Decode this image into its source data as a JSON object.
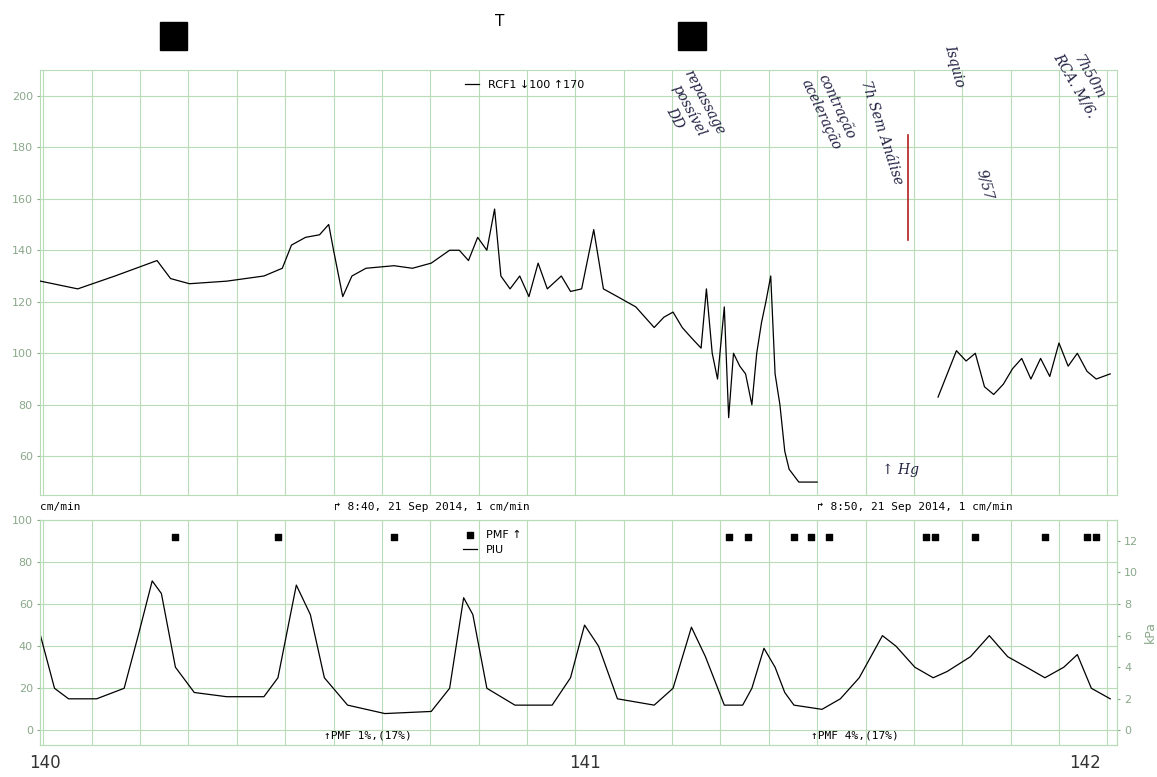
{
  "chart_data": [
    {
      "type": "line",
      "series": [
        {
          "name": "RCF1 ↓100 ↑170",
          "color": "#000000",
          "type": "line",
          "x": [
            -6.06,
            -5.29,
            -4.52,
            -3.65,
            -3.37,
            -2.98,
            -2.21,
            -1.44,
            -1.06,
            -0.87,
            -0.58,
            -0.29,
            -0.1,
            0,
            0.19,
            0.38,
            0.67,
            1.25,
            1.63,
            2.02,
            2.4,
            2.6,
            2.79,
            2.98,
            3.17,
            3.33,
            3.46,
            3.65,
            3.85,
            4.04,
            4.23,
            4.42,
            4.71,
            4.9,
            5.13,
            5.38,
            5.58,
            5.87,
            6.25,
            6.63,
            6.83,
            7.02,
            7.21,
            7.4,
            7.6,
            7.71,
            7.83,
            7.94,
            8.08,
            8.17,
            8.27,
            8.4,
            8.52,
            8.65,
            8.75,
            8.85,
            8.94,
            9.04,
            9.13,
            9.23,
            9.33,
            9.42,
            9.62,
            10.0,
            10.5,
            12.5,
            12.69,
            12.88,
            13.08,
            13.27,
            13.46,
            13.65,
            13.85,
            14.04,
            14.23,
            14.42,
            14.62,
            14.81,
            15.0,
            15.19,
            15.38,
            15.58,
            15.77,
            16.06
          ],
          "values": [
            128,
            125,
            130,
            136,
            129,
            127,
            128,
            130,
            133,
            142,
            145,
            146,
            150,
            140,
            122,
            130,
            133,
            134,
            133,
            135,
            140,
            140,
            136,
            145,
            140,
            156,
            130,
            125,
            130,
            122,
            135,
            125,
            130,
            124,
            125,
            148,
            125,
            122,
            118,
            110,
            114,
            116,
            110,
            106,
            102,
            125,
            100,
            90,
            118,
            75,
            100,
            95,
            92,
            80,
            100,
            112,
            120,
            130,
            92,
            80,
            62,
            55,
            50,
            50,
            null,
            83,
            92,
            101,
            97,
            100,
            87,
            84,
            88,
            94,
            98,
            90,
            98,
            91,
            104,
            95,
            100,
            93,
            90,
            92
          ]
        }
      ],
      "xlim": [
        -6.06,
        16.19
      ],
      "xticks": [
        -6,
        -5,
        -4,
        -3,
        -2,
        -1,
        0,
        1,
        2,
        3,
        4,
        5,
        6,
        7,
        8,
        9,
        10,
        11,
        12,
        13,
        14,
        15,
        16
      ],
      "ylim": [
        45,
        210
      ],
      "yticks": [
        60,
        80,
        100,
        120,
        140,
        160,
        180,
        200
      ],
      "grid": true,
      "tick_labels": "y",
      "legend": "upper center",
      "annotations": [
        {
          "text": "cm/min"
        },
        {
          "text": "↱ 8:40, 21 Sep 2014, 1 cm/min",
          "x": 0
        },
        {
          "text": "↱ 8:50, 21 Sep 2014, 1 cm/min",
          "x": 10
        }
      ]
    },
    {
      "type": "line",
      "series": [
        {
          "name": "PMF ↑",
          "color": "#000000",
          "type": "scatter",
          "marker": "s",
          "x": [
            -3.27,
            -1.15,
            1.25,
            8.17,
            8.56,
            9.52,
            9.87,
            10.25,
            12.25,
            12.44,
            13.27,
            14.71,
            15.58,
            15.77
          ],
          "values": [
            92,
            92,
            92,
            92,
            92,
            92,
            92,
            92,
            92,
            92,
            92,
            92,
            92,
            92
          ]
        },
        {
          "name": "PIU",
          "color": "#000000",
          "type": "line",
          "x": [
            -6.06,
            -5.77,
            -5.48,
            -4.9,
            -4.33,
            -4.04,
            -3.75,
            -3.56,
            -3.27,
            -2.88,
            -2.21,
            -1.44,
            -1.15,
            -0.77,
            -0.48,
            -0.19,
            0.29,
            1.06,
            2.02,
            2.4,
            2.69,
            2.88,
            3.17,
            3.75,
            4.52,
            4.9,
            5.19,
            5.48,
            5.87,
            6.63,
            7.02,
            7.4,
            7.69,
            8.08,
            8.46,
            8.65,
            8.9,
            9.13,
            9.33,
            9.52,
            10.1,
            10.48,
            10.87,
            11.35,
            11.63,
            12.02,
            12.4,
            12.69,
            13.17,
            13.56,
            13.94,
            14.33,
            14.71,
            15.1,
            15.38,
            15.67,
            16.06
          ],
          "values": [
            45,
            20,
            15,
            15,
            20,
            45,
            71,
            65,
            30,
            18,
            16,
            16,
            25,
            69,
            55,
            25,
            12,
            8,
            9,
            20,
            63,
            55,
            20,
            12,
            12,
            25,
            50,
            40,
            15,
            12,
            20,
            49,
            35,
            12,
            12,
            20,
            39,
            30,
            18,
            12,
            10,
            15,
            25,
            45,
            40,
            30,
            25,
            28,
            35,
            45,
            35,
            30,
            25,
            30,
            36,
            20,
            15
          ]
        }
      ],
      "xlim": [
        -6.06,
        16.19
      ],
      "xticks": [
        -6,
        -5,
        -4,
        -3,
        -2,
        -1,
        0,
        1,
        2,
        3,
        4,
        5,
        6,
        7,
        8,
        9,
        10,
        11,
        12,
        13,
        14,
        15,
        16
      ],
      "ylim": [
        -7,
        100
      ],
      "yticks": [
        0,
        20,
        40,
        60,
        80,
        100
      ],
      "y2lim": [
        -0.93,
        13.33
      ],
      "y2ticks": [
        0,
        2,
        4,
        6,
        8,
        10,
        12
      ],
      "y2label": "kPa",
      "grid": true,
      "tick_labels": "y",
      "legend": "upper center",
      "annotations": [
        {
          "text": "↑PMF 1%,(17%)",
          "x": -0.19,
          "y": -5
        },
        {
          "text": "↑PMF 4%,(17%)",
          "x": 9.87,
          "y": -5
        }
      ]
    }
  ],
  "header": "T",
  "footer": [
    "140",
    "141",
    "142"
  ],
  "notes": [
    "repassage\npossível\nDD",
    "contração\naceleração",
    "7h Sem Análise",
    "Isquio",
    "9/57",
    "7h50m\nRCA. M/6.",
    "↑ Hg"
  ]
}
